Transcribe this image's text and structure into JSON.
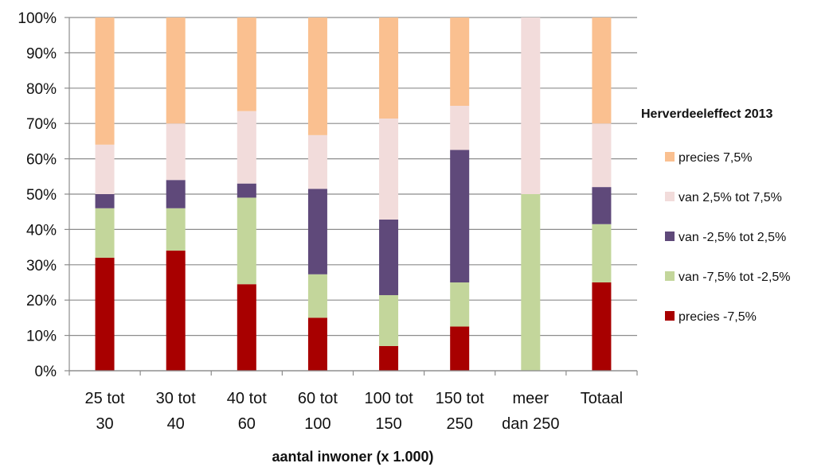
{
  "chart_data": {
    "type": "bar",
    "stacked": true,
    "normalized_percent": true,
    "categories": [
      [
        "25 tot",
        "30"
      ],
      [
        "30 tot",
        "40"
      ],
      [
        "40 tot",
        "60"
      ],
      [
        "60 tot",
        "100"
      ],
      [
        "100 tot",
        "150"
      ],
      [
        "150 tot",
        "250"
      ],
      [
        "meer",
        "dan 250"
      ],
      [
        "Totaal"
      ]
    ],
    "series": [
      {
        "name": "precies -7,5%",
        "color": "#A80000",
        "values": [
          32,
          34,
          24.5,
          15,
          7,
          12.5,
          0,
          25
        ]
      },
      {
        "name": "van -7,5% tot -2,5%",
        "color": "#C3D69B",
        "values": [
          14,
          12,
          24.5,
          12.3,
          14.4,
          12.5,
          50,
          16.5
        ]
      },
      {
        "name": "van -2,5% tot 2,5%",
        "color": "#5F497A",
        "values": [
          4,
          8,
          4,
          24.2,
          21.4,
          37.5,
          0,
          10.5
        ]
      },
      {
        "name": "van 2,5% tot 7,5%",
        "color": "#F2DCDB",
        "values": [
          14,
          16,
          20.5,
          15.2,
          28.6,
          12.5,
          50,
          18
        ]
      },
      {
        "name": "precies 7,5%",
        "color": "#FAC090",
        "values": [
          36,
          30,
          26.5,
          33.3,
          28.6,
          25,
          0,
          30
        ]
      }
    ],
    "legend_title": "Herverdeeleffect 2013",
    "legend_order": [
      4,
      3,
      2,
      1,
      0
    ],
    "y_ticks": [
      "0%",
      "10%",
      "20%",
      "30%",
      "40%",
      "50%",
      "60%",
      "70%",
      "80%",
      "90%",
      "100%"
    ],
    "xlabel": "aantal inwoner (x 1.000)",
    "ylabel": "",
    "ylim": [
      0,
      100
    ],
    "grid": true,
    "legend_position": "right"
  }
}
